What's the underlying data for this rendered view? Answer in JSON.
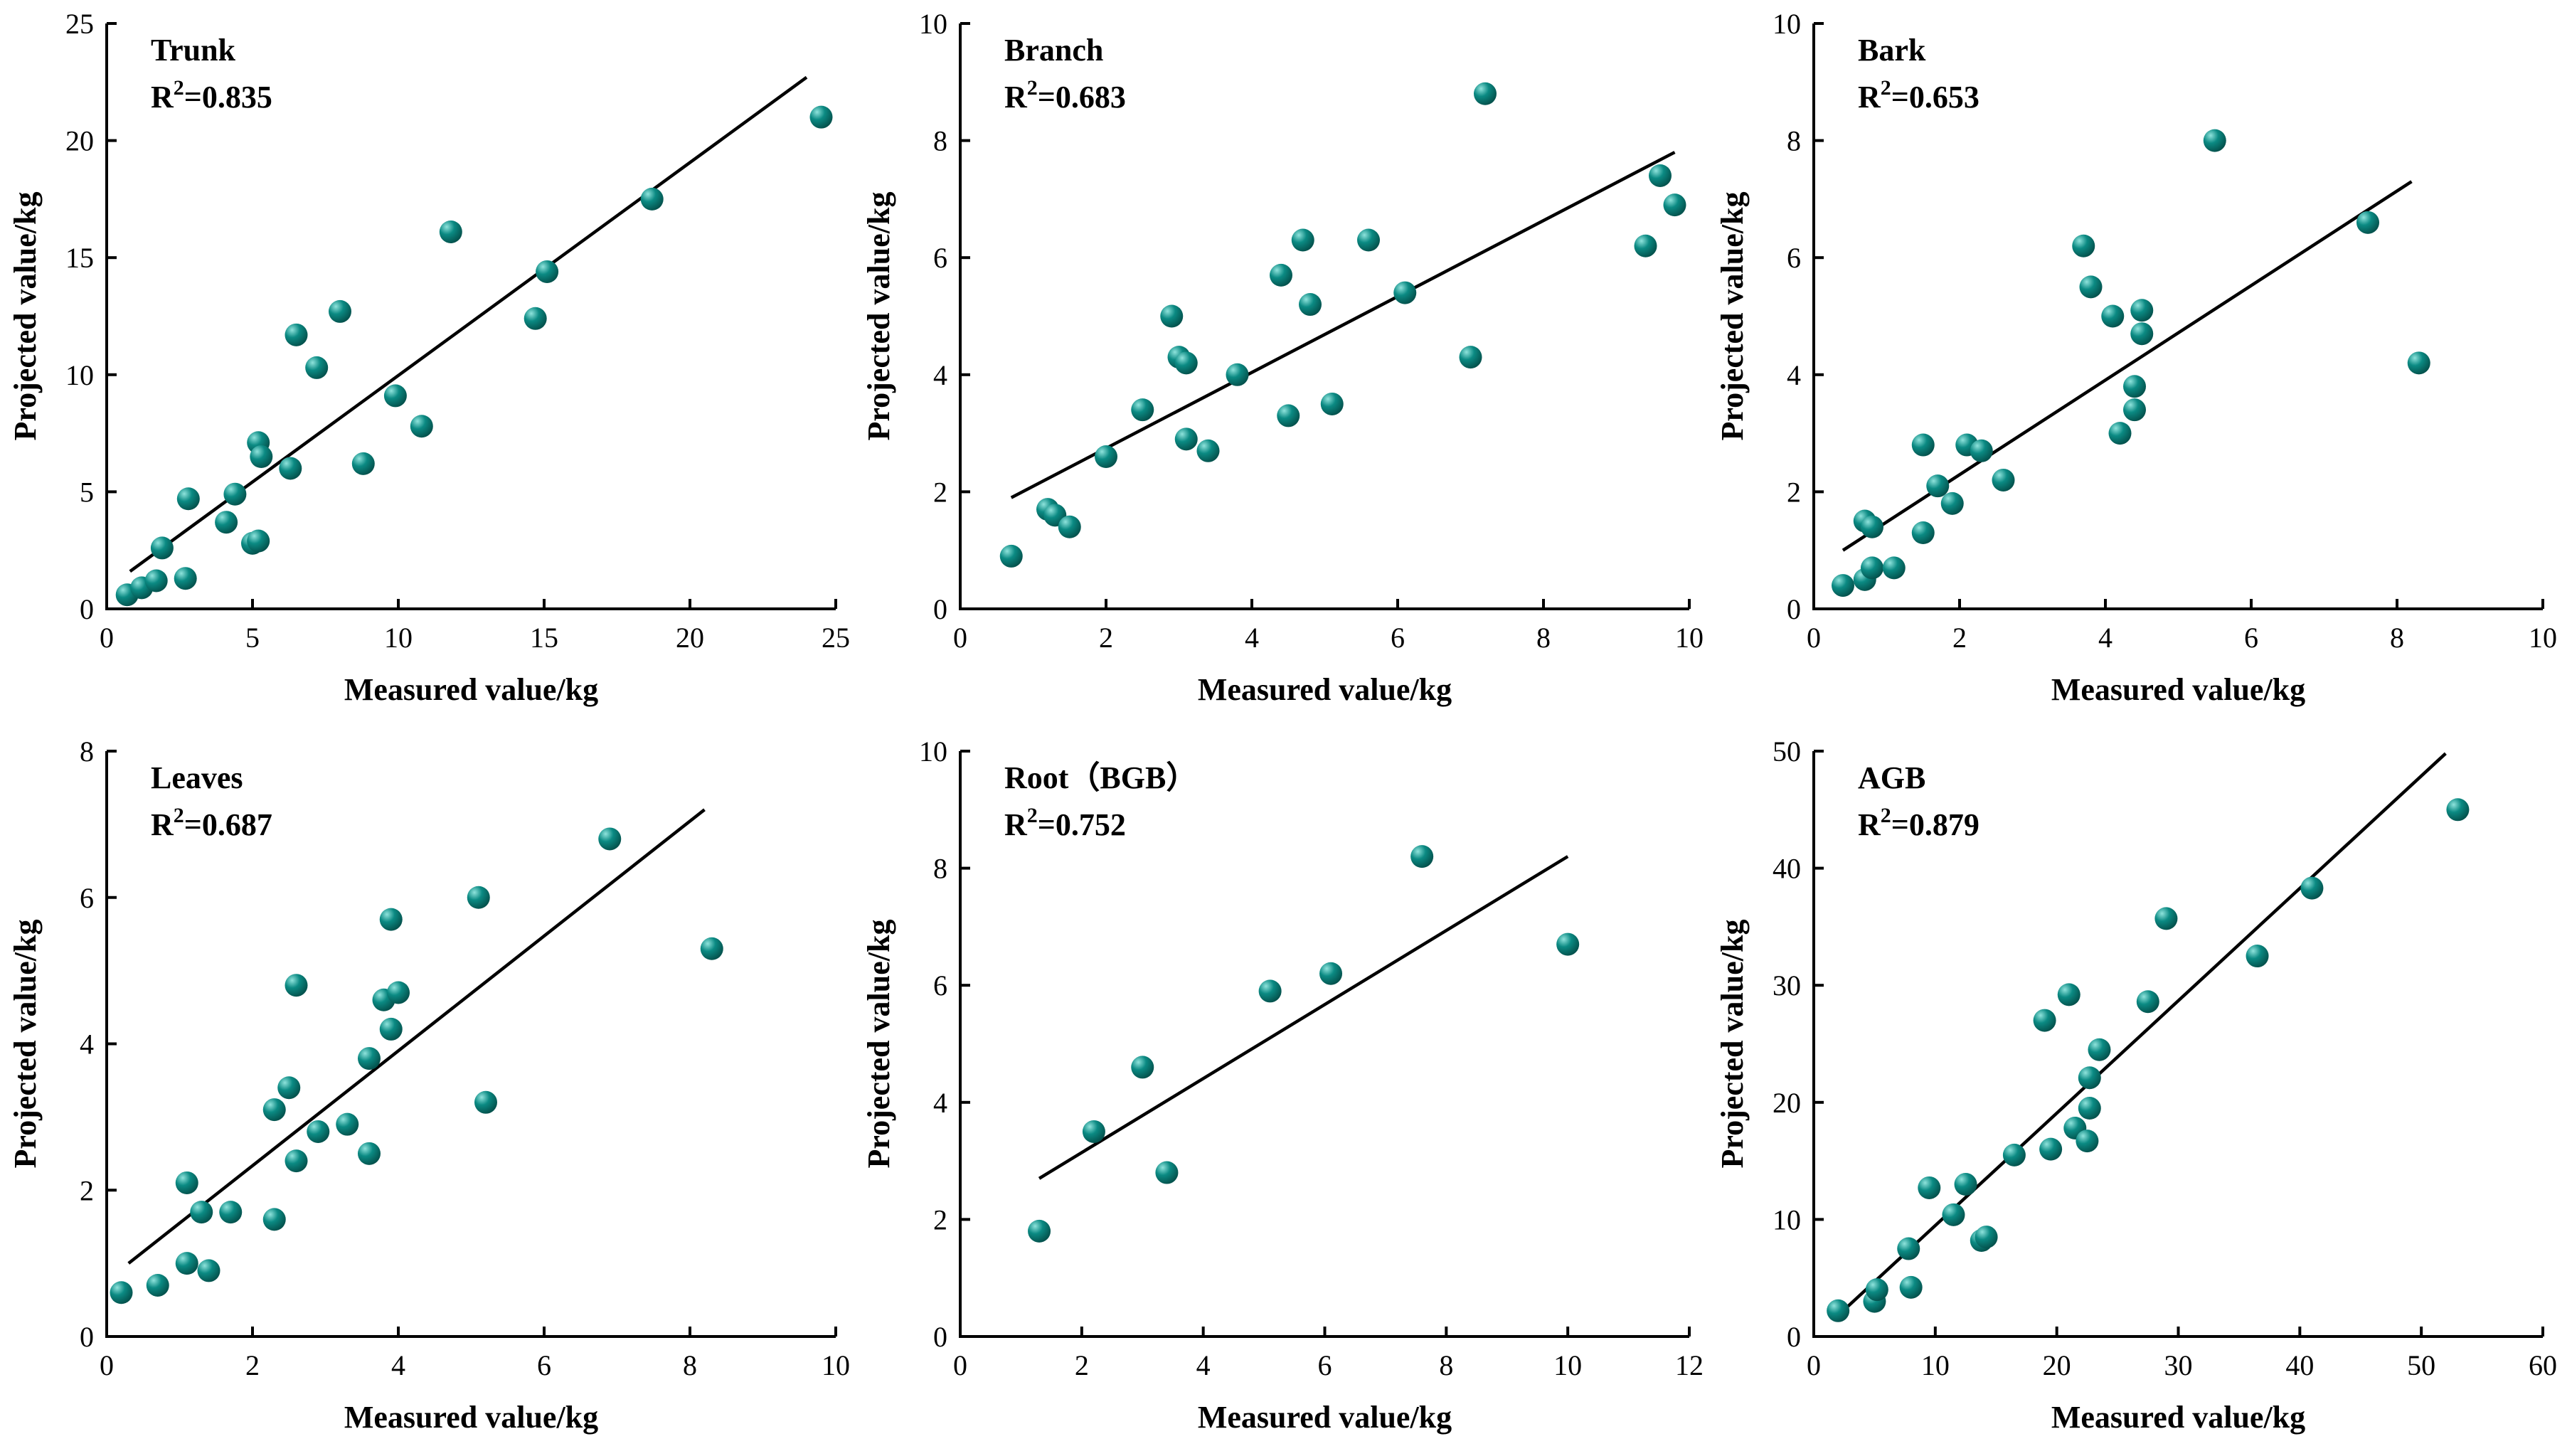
{
  "colors": {
    "point": "#0b8a83",
    "point_highlight": "#8fe3dc",
    "point_dark": "#04524d",
    "axis": "#000000",
    "fit": "#000000"
  },
  "chart_data": [
    {
      "type": "scatter",
      "title": "Trunk",
      "r2_label": "R",
      "r2_sup": "2",
      "r2_value": "=0.835",
      "xlabel": "Measured value/kg",
      "ylabel": "Projected value/kg",
      "xlim": [
        0,
        25
      ],
      "ylim": [
        0,
        25
      ],
      "xticks": [
        0,
        5,
        10,
        15,
        20,
        25
      ],
      "yticks": [
        0,
        5,
        10,
        15,
        20,
        25
      ],
      "fit": [
        [
          0.8,
          1.6
        ],
        [
          24.0,
          22.7
        ]
      ],
      "points": [
        [
          0.7,
          0.6
        ],
        [
          1.2,
          0.9
        ],
        [
          1.7,
          1.2
        ],
        [
          1.9,
          2.6
        ],
        [
          2.7,
          1.3
        ],
        [
          2.8,
          4.7
        ],
        [
          4.1,
          3.7
        ],
        [
          4.4,
          4.9
        ],
        [
          5.0,
          2.8
        ],
        [
          5.2,
          2.9
        ],
        [
          5.2,
          7.1
        ],
        [
          5.3,
          6.5
        ],
        [
          6.3,
          6.0
        ],
        [
          6.5,
          11.7
        ],
        [
          7.2,
          10.3
        ],
        [
          8.0,
          12.7
        ],
        [
          8.8,
          6.2
        ],
        [
          9.9,
          9.1
        ],
        [
          10.8,
          7.8
        ],
        [
          11.8,
          16.1
        ],
        [
          14.7,
          12.4
        ],
        [
          15.1,
          14.4
        ],
        [
          18.7,
          17.5
        ],
        [
          24.5,
          21.0
        ]
      ]
    },
    {
      "type": "scatter",
      "title": "Branch",
      "r2_label": "R",
      "r2_sup": "2",
      "r2_value": "=0.683",
      "xlabel": "Measured value/kg",
      "ylabel": "Projected value/kg",
      "xlim": [
        0,
        10
      ],
      "ylim": [
        0,
        10
      ],
      "xticks": [
        0,
        2,
        4,
        6,
        8,
        10
      ],
      "yticks": [
        0,
        2,
        4,
        6,
        8,
        10
      ],
      "fit": [
        [
          0.7,
          1.9
        ],
        [
          9.8,
          7.8
        ]
      ],
      "points": [
        [
          0.7,
          0.9
        ],
        [
          1.2,
          1.7
        ],
        [
          1.3,
          1.6
        ],
        [
          1.5,
          1.4
        ],
        [
          2.0,
          2.6
        ],
        [
          2.5,
          3.4
        ],
        [
          2.9,
          5.0
        ],
        [
          3.0,
          4.3
        ],
        [
          3.1,
          2.9
        ],
        [
          3.1,
          4.2
        ],
        [
          3.4,
          2.7
        ],
        [
          3.8,
          4.0
        ],
        [
          4.4,
          5.7
        ],
        [
          4.5,
          3.3
        ],
        [
          4.7,
          6.3
        ],
        [
          4.8,
          5.2
        ],
        [
          5.1,
          3.5
        ],
        [
          5.6,
          6.3
        ],
        [
          6.1,
          5.4
        ],
        [
          7.0,
          4.3
        ],
        [
          7.2,
          8.8
        ],
        [
          9.4,
          6.2
        ],
        [
          9.6,
          7.4
        ],
        [
          9.8,
          6.9
        ]
      ]
    },
    {
      "type": "scatter",
      "title": "Bark",
      "r2_label": "R",
      "r2_sup": "2",
      "r2_value": "=0.653",
      "xlabel": "Measured value/kg",
      "ylabel": "Projected value/kg",
      "xlim": [
        0,
        10
      ],
      "ylim": [
        0,
        10
      ],
      "xticks": [
        0,
        2,
        4,
        6,
        8,
        10
      ],
      "yticks": [
        0,
        2,
        4,
        6,
        8,
        10
      ],
      "fit": [
        [
          0.4,
          1.0
        ],
        [
          8.2,
          7.3
        ]
      ],
      "points": [
        [
          0.4,
          0.4
        ],
        [
          0.7,
          0.5
        ],
        [
          0.7,
          1.5
        ],
        [
          0.8,
          1.4
        ],
        [
          0.8,
          0.7
        ],
        [
          1.1,
          0.7
        ],
        [
          1.5,
          2.8
        ],
        [
          1.5,
          1.3
        ],
        [
          1.7,
          2.1
        ],
        [
          1.9,
          1.8
        ],
        [
          2.1,
          2.8
        ],
        [
          2.3,
          2.7
        ],
        [
          2.6,
          2.2
        ],
        [
          3.7,
          6.2
        ],
        [
          3.8,
          5.5
        ],
        [
          4.1,
          5.0
        ],
        [
          4.2,
          3.0
        ],
        [
          4.4,
          3.8
        ],
        [
          4.4,
          3.4
        ],
        [
          4.5,
          4.7
        ],
        [
          4.5,
          5.1
        ],
        [
          5.5,
          8.0
        ],
        [
          7.6,
          6.6
        ],
        [
          8.3,
          4.2
        ]
      ]
    },
    {
      "type": "scatter",
      "title": "Leaves",
      "r2_label": "R",
      "r2_sup": "2",
      "r2_value": "=0.687",
      "xlabel": "Measured value/kg",
      "ylabel": "Projected value/kg",
      "xlim": [
        0,
        10
      ],
      "ylim": [
        0,
        8
      ],
      "xticks": [
        0,
        2,
        4,
        6,
        8,
        10
      ],
      "yticks": [
        0,
        2,
        4,
        6,
        8
      ],
      "fit": [
        [
          0.3,
          1.0
        ],
        [
          8.2,
          7.2
        ]
      ],
      "points": [
        [
          0.2,
          0.6
        ],
        [
          0.7,
          0.7
        ],
        [
          1.1,
          1.0
        ],
        [
          1.1,
          2.1
        ],
        [
          1.3,
          1.7
        ],
        [
          1.4,
          0.9
        ],
        [
          1.7,
          1.7
        ],
        [
          2.3,
          3.1
        ],
        [
          2.3,
          1.6
        ],
        [
          2.5,
          3.4
        ],
        [
          2.6,
          2.4
        ],
        [
          2.6,
          4.8
        ],
        [
          2.9,
          2.8
        ],
        [
          3.3,
          2.9
        ],
        [
          3.6,
          3.8
        ],
        [
          3.6,
          2.5
        ],
        [
          3.8,
          4.6
        ],
        [
          3.9,
          5.7
        ],
        [
          3.9,
          4.2
        ],
        [
          4.0,
          4.7
        ],
        [
          5.1,
          6.0
        ],
        [
          5.2,
          3.2
        ],
        [
          6.9,
          6.8
        ],
        [
          8.3,
          5.3
        ]
      ]
    },
    {
      "type": "scatter",
      "title": "Root（BGB）",
      "r2_label": "R",
      "r2_sup": "2",
      "r2_value": "=0.752",
      "xlabel": "Measured value/kg",
      "ylabel": "Projected value/kg",
      "xlim": [
        0,
        12
      ],
      "ylim": [
        0,
        10
      ],
      "xticks": [
        0,
        2,
        4,
        6,
        8,
        10,
        12
      ],
      "yticks": [
        0,
        2,
        4,
        6,
        8,
        10
      ],
      "fit": [
        [
          1.3,
          2.7
        ],
        [
          10.0,
          8.2
        ]
      ],
      "points": [
        [
          1.3,
          1.8
        ],
        [
          2.2,
          3.5
        ],
        [
          3.0,
          4.6
        ],
        [
          3.4,
          2.8
        ],
        [
          5.1,
          5.9
        ],
        [
          6.1,
          6.2
        ],
        [
          7.6,
          8.2
        ],
        [
          10.0,
          6.7
        ]
      ]
    },
    {
      "type": "scatter",
      "title": "AGB",
      "r2_label": "R",
      "r2_sup": "2",
      "r2_value": "=0.879",
      "xlabel": "Measured value/kg",
      "ylabel": "Projected value/kg",
      "xlim": [
        0,
        60
      ],
      "ylim": [
        0,
        50
      ],
      "xticks": [
        0,
        10,
        20,
        30,
        40,
        50,
        60
      ],
      "yticks": [
        0,
        10,
        20,
        30,
        40,
        50
      ],
      "fit": [
        [
          2.0,
          1.8
        ],
        [
          52.0,
          49.8
        ]
      ],
      "points": [
        [
          2.0,
          2.2
        ],
        [
          5.0,
          3.0
        ],
        [
          5.2,
          4.0
        ],
        [
          7.8,
          7.5
        ],
        [
          8.0,
          4.2
        ],
        [
          9.5,
          12.7
        ],
        [
          11.5,
          10.4
        ],
        [
          12.5,
          13.0
        ],
        [
          13.8,
          8.2
        ],
        [
          14.2,
          8.5
        ],
        [
          16.5,
          15.5
        ],
        [
          19.0,
          27.0
        ],
        [
          19.5,
          16.0
        ],
        [
          21.0,
          29.2
        ],
        [
          21.5,
          17.8
        ],
        [
          22.5,
          16.7
        ],
        [
          22.7,
          19.5
        ],
        [
          22.7,
          22.1
        ],
        [
          23.5,
          24.5
        ],
        [
          27.5,
          28.6
        ],
        [
          29.0,
          35.7
        ],
        [
          36.5,
          32.5
        ],
        [
          41.0,
          38.3
        ],
        [
          53.0,
          45.0
        ]
      ]
    }
  ]
}
